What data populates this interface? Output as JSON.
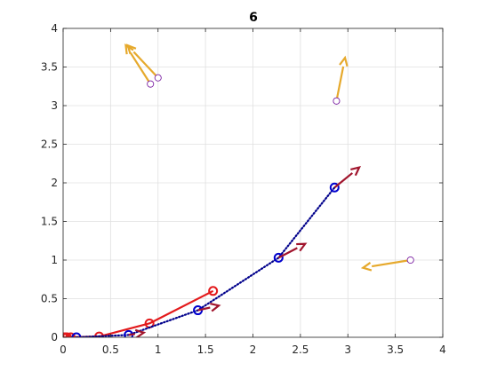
{
  "chart_data": {
    "type": "line",
    "title": "6",
    "xlabel": "",
    "ylabel": "",
    "xlim": [
      0,
      4
    ],
    "ylim": [
      0,
      4
    ],
    "xticks": [
      0,
      0.5,
      1,
      1.5,
      2,
      2.5,
      3,
      3.5,
      4
    ],
    "yticks": [
      0,
      0.5,
      1,
      1.5,
      2,
      2.5,
      3,
      3.5,
      4
    ],
    "xtick_labels": [
      "0",
      "0.5",
      "1",
      "1.5",
      "2",
      "2.5",
      "3",
      "3.5",
      "4"
    ],
    "ytick_labels": [
      "0",
      "0.5",
      "1",
      "1.5",
      "2",
      "2.5",
      "3",
      "3.5",
      "4"
    ],
    "grid": true,
    "series": [
      {
        "style": "solid",
        "color": "#e31a1c",
        "marker": "circle",
        "x": [
          0,
          0.02,
          0.04,
          0.08,
          0.38,
          0.91,
          1.58
        ],
        "y": [
          0,
          0,
          0,
          0,
          0.01,
          0.18,
          0.6
        ]
      },
      {
        "style": "dotted",
        "color": "#00008b",
        "marker_color": "#0000cd",
        "marker": "circle",
        "x": [
          0.14,
          0.69,
          1.42,
          2.27,
          2.86
        ],
        "y": [
          0,
          0.03,
          0.35,
          1.03,
          1.94
        ]
      }
    ],
    "arrows": [
      {
        "group": "dark-red",
        "color": "#a1152d",
        "x": 0.69,
        "y": 0.03,
        "dx": 0.16,
        "dy": 0.03
      },
      {
        "group": "dark-red",
        "color": "#a1152d",
        "x": 1.42,
        "y": 0.35,
        "dx": 0.22,
        "dy": 0.06
      },
      {
        "group": "dark-red",
        "color": "#a1152d",
        "x": 2.27,
        "y": 1.03,
        "dx": 0.28,
        "dy": 0.18
      },
      {
        "group": "dark-red",
        "color": "#a1152d",
        "x": 2.86,
        "y": 1.94,
        "dx": 0.26,
        "dy": 0.26
      },
      {
        "group": "gold",
        "color": "#e6a92c",
        "x": 0.92,
        "y": 3.28,
        "dx": -0.26,
        "dy": 0.5
      },
      {
        "group": "gold",
        "color": "#e6a92c",
        "x": 1.0,
        "y": 3.36,
        "dx": -0.32,
        "dy": 0.42
      },
      {
        "group": "gold",
        "color": "#e6a92c",
        "x": 2.88,
        "y": 3.06,
        "dx": 0.09,
        "dy": 0.56
      },
      {
        "group": "gold",
        "color": "#e6a92c",
        "x": 3.66,
        "y": 1.0,
        "dx": -0.5,
        "dy": -0.1
      }
    ],
    "free_points": [
      {
        "color": "#7a1fa2",
        "x": 0.92,
        "y": 3.28
      },
      {
        "color": "#7a1fa2",
        "x": 1.0,
        "y": 3.36
      },
      {
        "color": "#7a1fa2",
        "x": 2.88,
        "y": 3.06
      },
      {
        "color": "#7a1fa2",
        "x": 3.66,
        "y": 1.0
      }
    ]
  }
}
